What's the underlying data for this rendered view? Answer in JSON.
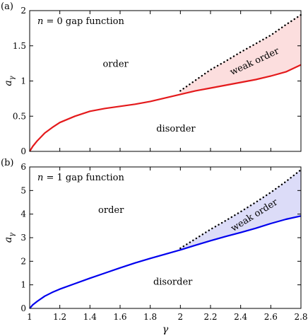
{
  "chart_data": [
    {
      "panel_label": "(a)",
      "type": "line",
      "title": "n = 0 gap function",
      "title_parts": {
        "var": "n",
        "eq": " = 0 gap function"
      },
      "xlabel": "",
      "ylabel": "aγ",
      "ylabel_parts": {
        "base": "a",
        "sub": "γ"
      },
      "xlim": [
        1,
        2.8
      ],
      "ylim": [
        0,
        2
      ],
      "xticks": [],
      "yticks": [
        0,
        0.5,
        1,
        1.5,
        2
      ],
      "ytick_labels": [
        "0",
        "0.5",
        "1",
        "1.5",
        "2"
      ],
      "series": [
        {
          "style": "solid",
          "color": "#e41a1c",
          "x": [
            1.0,
            1.02,
            1.05,
            1.1,
            1.15,
            1.2,
            1.3,
            1.4,
            1.5,
            1.6,
            1.7,
            1.8,
            1.9,
            2.0,
            2.1,
            2.2,
            2.3,
            2.4,
            2.5,
            2.6,
            2.7,
            2.8
          ],
          "y": [
            0.0,
            0.07,
            0.15,
            0.26,
            0.34,
            0.41,
            0.5,
            0.57,
            0.61,
            0.64,
            0.67,
            0.71,
            0.76,
            0.81,
            0.86,
            0.9,
            0.94,
            0.98,
            1.02,
            1.07,
            1.13,
            1.23
          ]
        },
        {
          "style": "dotted",
          "color": "#000000",
          "x": [
            2.0,
            2.1,
            2.2,
            2.3,
            2.4,
            2.5,
            2.6,
            2.7,
            2.8
          ],
          "y": [
            0.86,
            1.01,
            1.16,
            1.28,
            1.41,
            1.53,
            1.65,
            1.8,
            1.94
          ]
        }
      ],
      "shaded_region": {
        "color": "#fcdede",
        "x_from": 2.0,
        "x_to": 2.8
      },
      "annotations": [
        {
          "text": "order",
          "x": 1.57,
          "y": 1.2,
          "rotation": 0
        },
        {
          "text": "disorder",
          "x": 1.97,
          "y": 0.28,
          "rotation": 0
        },
        {
          "text": "weak order",
          "x": 2.5,
          "y": 1.24,
          "rotation": -25
        }
      ]
    },
    {
      "panel_label": "(b)",
      "type": "line",
      "title": "n = 1 gap function",
      "title_parts": {
        "var": "n",
        "eq": " = 1 gap function"
      },
      "xlabel": "γ",
      "ylabel": "aγ",
      "ylabel_parts": {
        "base": "a",
        "sub": "γ"
      },
      "xlim": [
        1,
        2.8
      ],
      "ylim": [
        0,
        6
      ],
      "xticks": [
        1,
        1.2,
        1.4,
        1.6,
        1.8,
        2,
        2.2,
        2.4,
        2.6,
        2.8
      ],
      "xtick_labels": [
        "1",
        "1.2",
        "1.4",
        "1.6",
        "1.8",
        "2",
        "2.2",
        "2.4",
        "2.6",
        "2.8"
      ],
      "yticks": [
        0,
        1,
        2,
        3,
        4,
        5,
        6
      ],
      "ytick_labels": [
        "0",
        "1",
        "2",
        "3",
        "4",
        "5",
        "6"
      ],
      "series": [
        {
          "style": "solid",
          "color": "#0000ee",
          "x": [
            1.0,
            1.02,
            1.05,
            1.1,
            1.15,
            1.2,
            1.3,
            1.4,
            1.5,
            1.6,
            1.7,
            1.8,
            1.9,
            2.0,
            2.1,
            2.2,
            2.3,
            2.4,
            2.5,
            2.6,
            2.7,
            2.8
          ],
          "y": [
            0.0,
            0.15,
            0.3,
            0.52,
            0.68,
            0.82,
            1.05,
            1.28,
            1.5,
            1.72,
            1.93,
            2.12,
            2.3,
            2.48,
            2.68,
            2.87,
            3.05,
            3.22,
            3.4,
            3.6,
            3.78,
            3.92
          ]
        },
        {
          "style": "dotted",
          "color": "#000000",
          "x": [
            2.0,
            2.1,
            2.2,
            2.3,
            2.4,
            2.5,
            2.6,
            2.7,
            2.8
          ],
          "y": [
            2.55,
            2.95,
            3.35,
            3.72,
            4.1,
            4.5,
            4.92,
            5.38,
            5.88
          ]
        }
      ],
      "shaded_region": {
        "color": "#dcdcf8",
        "x_from": 2.0,
        "x_to": 2.8
      },
      "annotations": [
        {
          "text": "order",
          "x": 1.54,
          "y": 4.05,
          "rotation": 0
        },
        {
          "text": "disorder",
          "x": 1.95,
          "y": 1.0,
          "rotation": 0
        },
        {
          "text": "weak order",
          "x": 2.5,
          "y": 3.85,
          "rotation": -32
        }
      ]
    }
  ]
}
